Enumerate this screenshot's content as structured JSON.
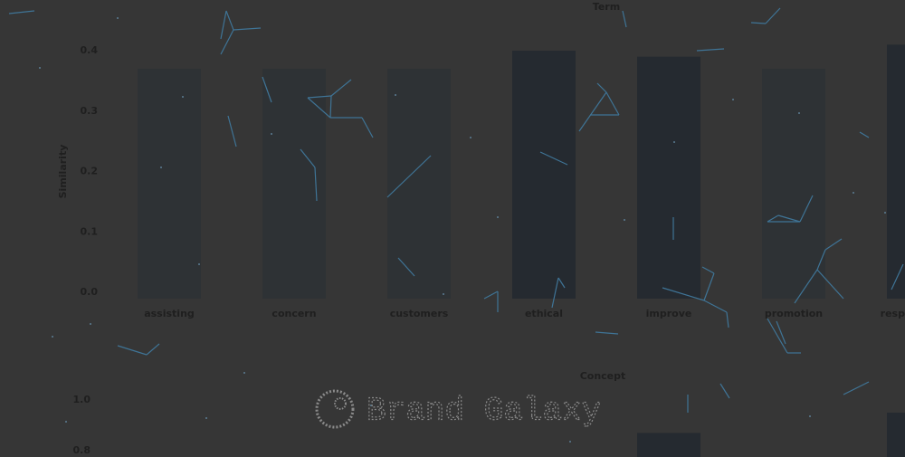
{
  "chart_data": [
    {
      "type": "bar",
      "title": "Term",
      "y_label": "Similarity",
      "categories": [
        "assisting",
        "concern",
        "customers",
        "ethical",
        "improve",
        "promotion",
        "responsibility"
      ],
      "values": [
        0.37,
        0.37,
        0.37,
        0.4,
        0.39,
        0.37,
        0.41
      ],
      "colors": [
        "#2e3235",
        "#2e3235",
        "#2e3235",
        "#252a30",
        "#252a30",
        "#2e3235",
        "#252a30"
      ],
      "ylim": [
        0,
        0.4
      ],
      "yticks": [
        {
          "value": 0,
          "label": "0.0"
        },
        0.1,
        0.2,
        0.3,
        0.4
      ],
      "grid": false
    },
    {
      "type": "bar",
      "title": "Concept",
      "categories": [
        null,
        null,
        null,
        null,
        null,
        null,
        null
      ],
      "values": [
        null,
        null,
        null,
        null,
        0.87,
        null,
        0.95
      ],
      "color": "#252a30",
      "ylim": [
        0.8,
        1.0
      ],
      "yticks": [
        0.8,
        {
          "value": 1,
          "label": "1.0"
        }
      ],
      "grid": false
    }
  ],
  "overlay": {
    "brand": "Brand Galaxy"
  }
}
